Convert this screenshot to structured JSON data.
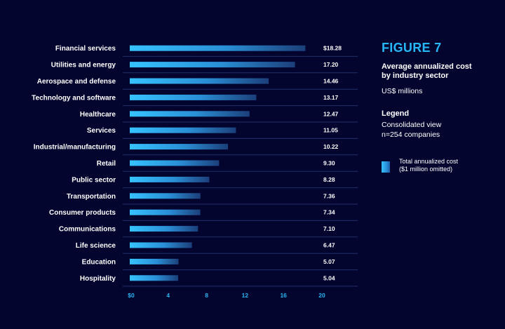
{
  "figure": {
    "label": "FIGURE 7",
    "subtitle_lines": [
      "Average annualized cost",
      "by industry sector"
    ],
    "units": "US$ millions"
  },
  "legend": {
    "heading": "Legend",
    "lines": [
      "Consolidated view",
      "n=254 companies"
    ],
    "item_lines": [
      "Total annualized cost",
      "($1 million omitted)"
    ]
  },
  "colors": {
    "background": "#03052e",
    "accent": "#27b6f6",
    "bar_start": "#36c3ff",
    "bar_end": "#1b3f7a",
    "rule": "#20306a"
  },
  "chart_data": {
    "type": "bar",
    "orientation": "horizontal",
    "categories": [
      "Financial services",
      "Utilities and energy",
      "Aerospace and defense",
      "Technology and software",
      "Healthcare",
      "Services",
      "Industrial/manufacturing",
      "Retail",
      "Public sector",
      "Transportation",
      "Consumer products",
      "Communications",
      "Life science",
      "Education",
      "Hospitality"
    ],
    "series": [
      {
        "name": "Total annualized cost",
        "values": [
          18.28,
          17.2,
          14.46,
          13.17,
          12.47,
          11.05,
          10.22,
          9.3,
          8.28,
          7.36,
          7.34,
          7.1,
          6.47,
          5.07,
          5.04
        ]
      }
    ],
    "value_labels": [
      "$18.28",
      "17.20",
      "14.46",
      "13.17",
      "12.47",
      "11.05",
      "10.22",
      "9.30",
      "8.28",
      "7.36",
      "7.34",
      "7.10",
      "6.47",
      "5.07",
      "5.04"
    ],
    "xticks": [
      0,
      4,
      8,
      12,
      16,
      20
    ],
    "xtick_labels": [
      "$0",
      "4",
      "8",
      "12",
      "16",
      "20"
    ],
    "xlim": [
      0,
      20
    ],
    "grid": false,
    "legend_position": "right"
  }
}
